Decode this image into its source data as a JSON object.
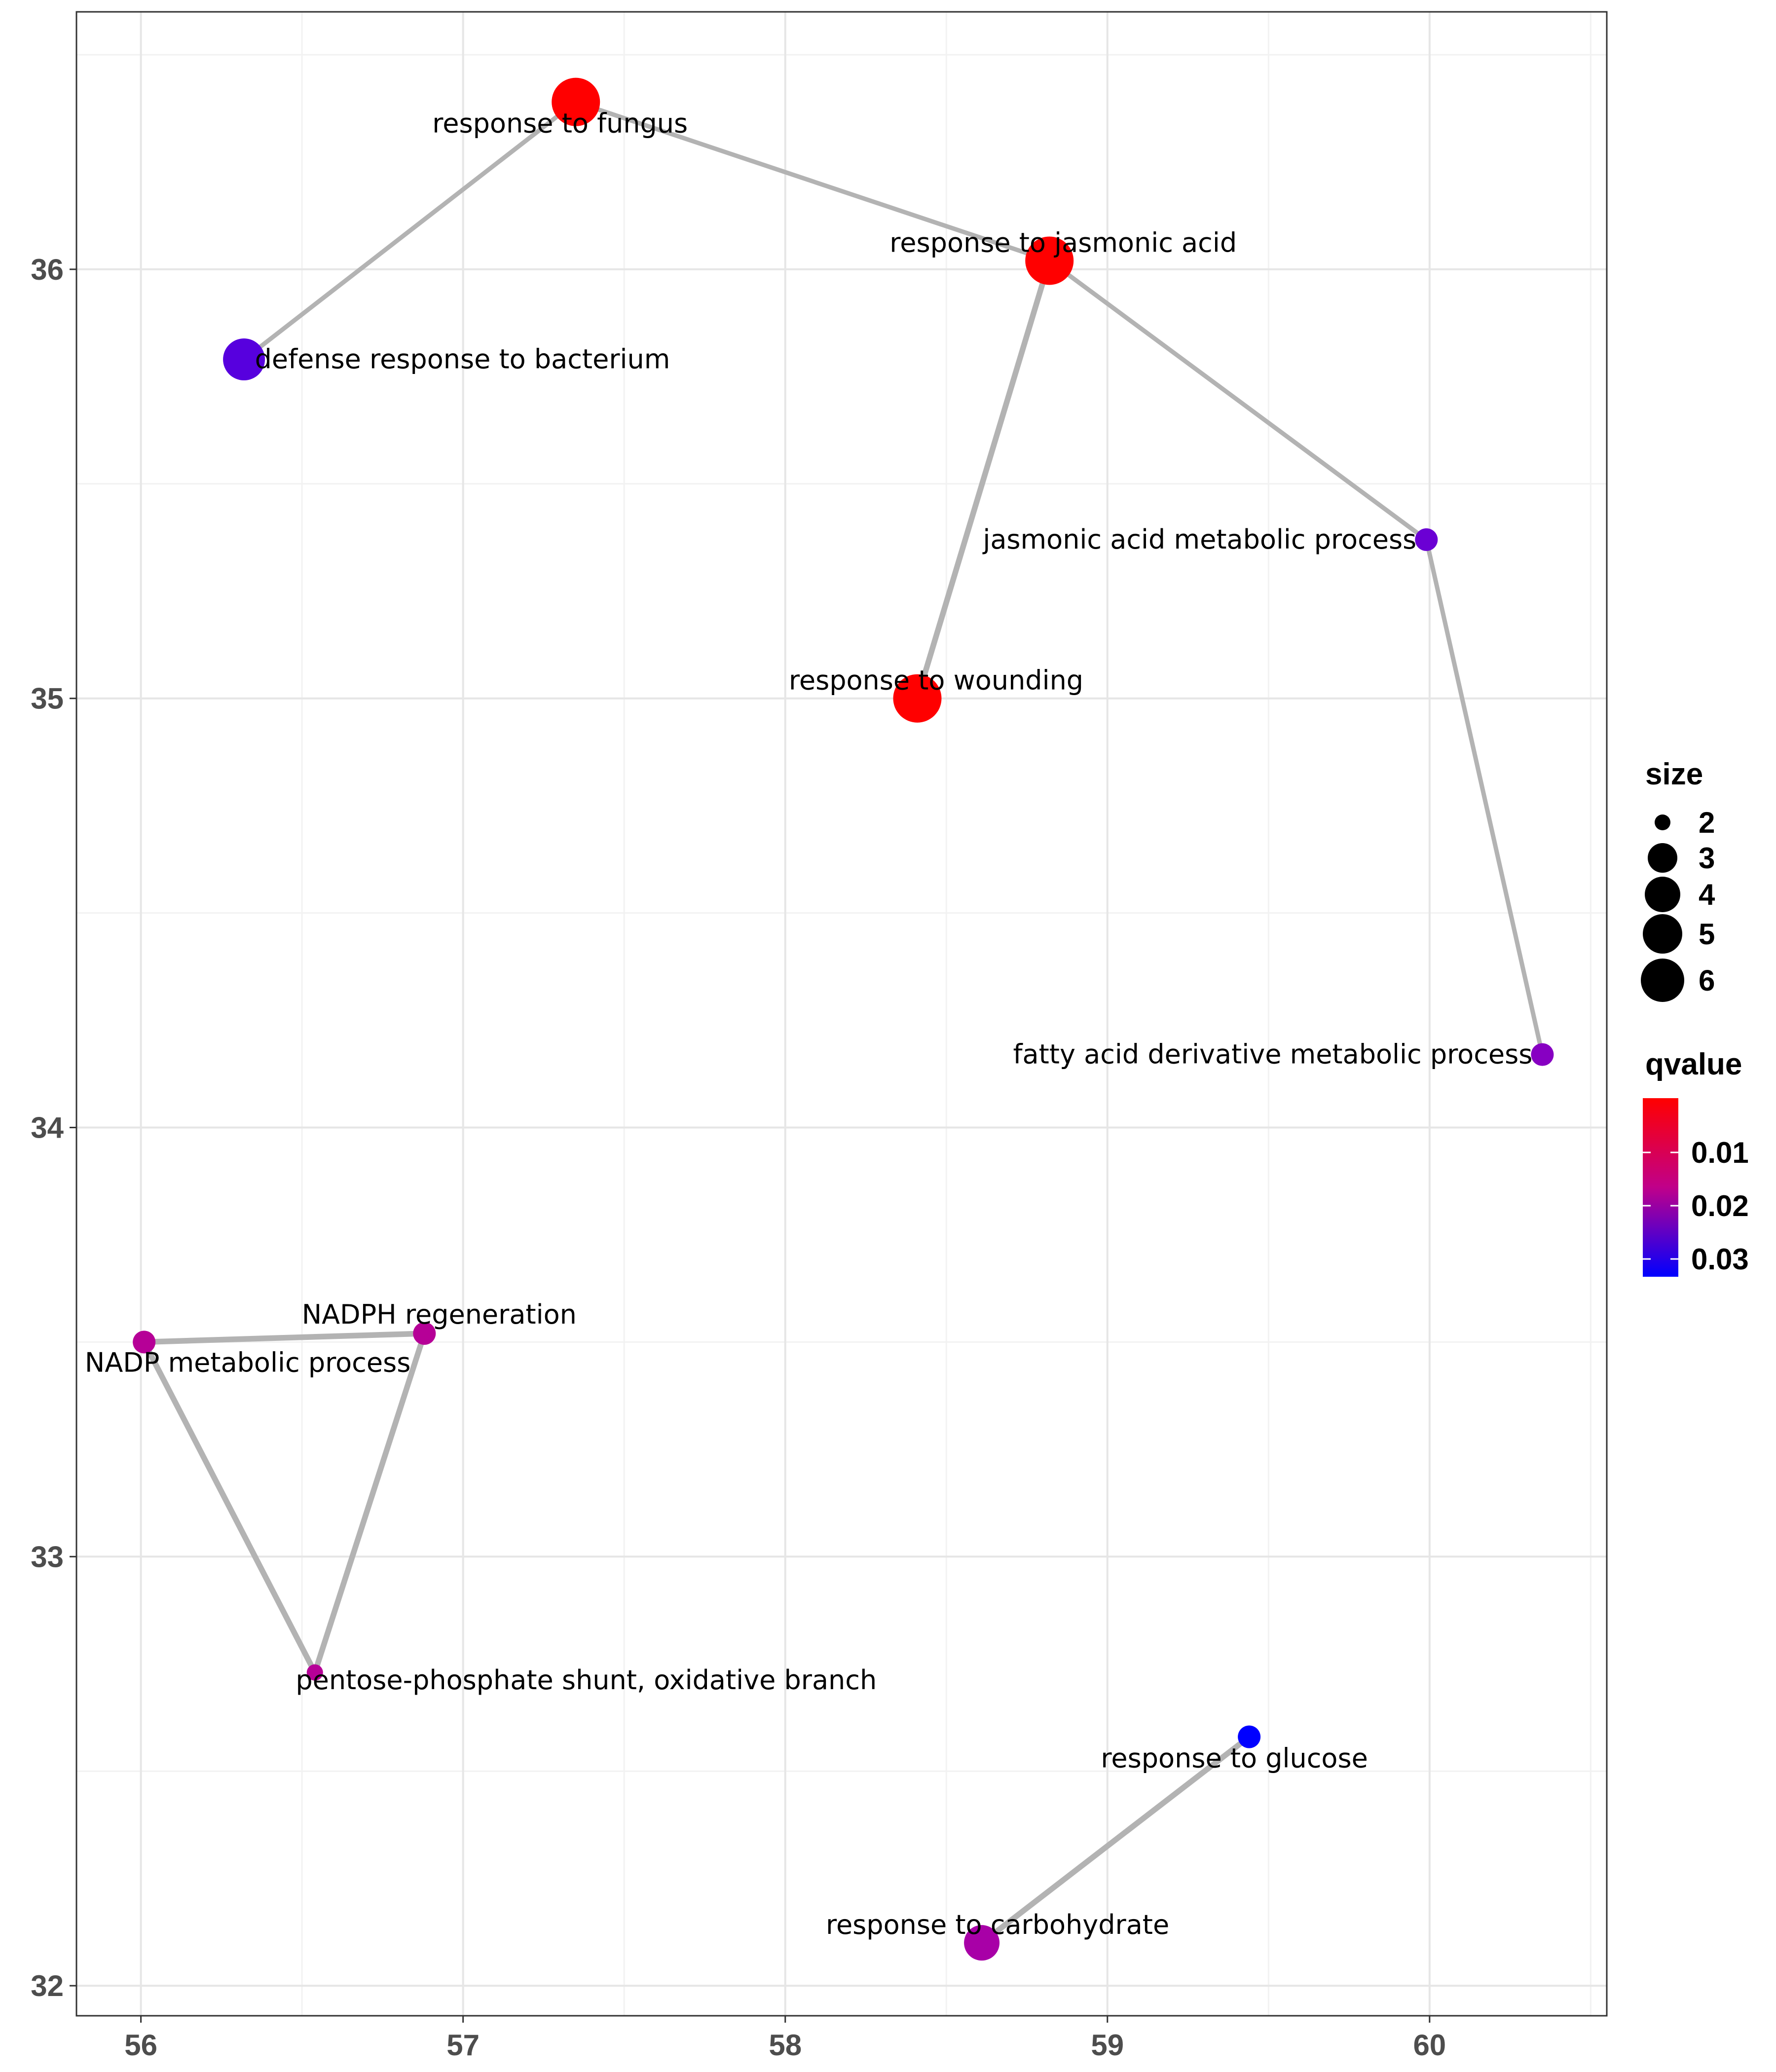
{
  "chart_data": {
    "type": "scatter",
    "title": "",
    "xlabel": "",
    "ylabel": "",
    "xlim": [
      55.8,
      60.55
    ],
    "ylim": [
      31.93,
      36.6
    ],
    "x_ticks": [
      "56",
      "57",
      "58",
      "59",
      "60"
    ],
    "y_ticks": [
      "32",
      "33",
      "34",
      "35",
      "36"
    ],
    "grid": true,
    "nodes": [
      {
        "id": "n1",
        "label": "response to fungus",
        "x": 57.35,
        "y": 36.39,
        "size": 6,
        "qvalue": 0.001
      },
      {
        "id": "n2",
        "label": "response to jasmonic acid",
        "x": 58.82,
        "y": 36.02,
        "size": 6,
        "qvalue": 0.001
      },
      {
        "id": "n3",
        "label": "defense response to bacterium",
        "x": 56.32,
        "y": 35.79,
        "size": 5,
        "qvalue": 0.027
      },
      {
        "id": "n4",
        "label": "jasmonic acid metabolic process",
        "x": 59.99,
        "y": 35.37,
        "size": 2,
        "qvalue": 0.025
      },
      {
        "id": "n5",
        "label": "response to wounding",
        "x": 58.41,
        "y": 35.0,
        "size": 6,
        "qvalue": 0.001
      },
      {
        "id": "n6",
        "label": "fatty acid derivative metabolic process",
        "x": 60.35,
        "y": 34.17,
        "size": 2,
        "qvalue": 0.022
      },
      {
        "id": "n7",
        "label": "NADPH regeneration",
        "x": 56.88,
        "y": 33.52,
        "size": 2,
        "qvalue": 0.016
      },
      {
        "id": "n8",
        "label": "NADP metabolic process",
        "x": 56.01,
        "y": 33.5,
        "size": 2,
        "qvalue": 0.016
      },
      {
        "id": "n9",
        "label": "pentose-phosphate shunt, oxidative branch",
        "x": 56.54,
        "y": 32.73,
        "size": 1,
        "qvalue": 0.016
      },
      {
        "id": "n10",
        "label": "response to glucose",
        "x": 59.44,
        "y": 32.58,
        "size": 2,
        "qvalue": 0.035
      },
      {
        "id": "n11",
        "label": "response to carbohydrate",
        "x": 58.61,
        "y": 32.1,
        "size": 4,
        "qvalue": 0.018
      }
    ],
    "edges": [
      {
        "from": "n1",
        "to": "n3",
        "weight": 2
      },
      {
        "from": "n1",
        "to": "n2",
        "weight": 2
      },
      {
        "from": "n2",
        "to": "n5",
        "weight": 3
      },
      {
        "from": "n2",
        "to": "n4",
        "weight": 2
      },
      {
        "from": "n4",
        "to": "n6",
        "weight": 2
      },
      {
        "from": "n8",
        "to": "n7",
        "weight": 3
      },
      {
        "from": "n8",
        "to": "n9",
        "weight": 3
      },
      {
        "from": "n7",
        "to": "n9",
        "weight": 3
      },
      {
        "from": "n10",
        "to": "n11",
        "weight": 3
      }
    ],
    "legend": {
      "placement": "right",
      "size_title": "size",
      "size_items": [
        "2",
        "3",
        "4",
        "5",
        "6"
      ],
      "color_title": "qvalue",
      "color_ticks": [
        "0.01",
        "0.02",
        "0.03"
      ],
      "color_low": "#ff0000",
      "color_high": "#0000ff"
    },
    "edge_color": "#b3b3b3"
  }
}
